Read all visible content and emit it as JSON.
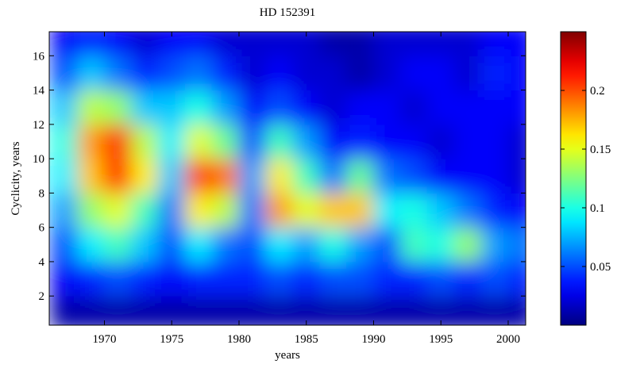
{
  "chart_data": {
    "type": "heatmap",
    "title": "HD 152391",
    "x_label": "years",
    "y_label": "Cyclicity, years",
    "x": [
      1967,
      1969,
      1971,
      1973,
      1975,
      1977,
      1979,
      1981,
      1983,
      1985,
      1987,
      1989,
      1991,
      1993,
      1995,
      1997,
      1999,
      2001
    ],
    "y": [
      1,
      3,
      5,
      7,
      9,
      11,
      13,
      15,
      17
    ],
    "z": [
      [
        0.01,
        0.01,
        0.01,
        0.01,
        0.01,
        0.01,
        0.01,
        0.01,
        0.01,
        0.01,
        0.01,
        0.01,
        0.01,
        0.01,
        0.01,
        0.01,
        0.01,
        0.01
      ],
      [
        0.03,
        0.04,
        0.05,
        0.04,
        0.03,
        0.04,
        0.04,
        0.04,
        0.05,
        0.04,
        0.05,
        0.05,
        0.04,
        0.04,
        0.05,
        0.04,
        0.05,
        0.04
      ],
      [
        0.05,
        0.09,
        0.11,
        0.08,
        0.05,
        0.09,
        0.06,
        0.05,
        0.09,
        0.07,
        0.1,
        0.07,
        0.05,
        0.11,
        0.1,
        0.13,
        0.07,
        0.06
      ],
      [
        0.07,
        0.13,
        0.15,
        0.11,
        0.06,
        0.16,
        0.14,
        0.06,
        0.18,
        0.15,
        0.17,
        0.17,
        0.09,
        0.1,
        0.08,
        0.06,
        0.04,
        0.03
      ],
      [
        0.09,
        0.17,
        0.21,
        0.16,
        0.08,
        0.2,
        0.19,
        0.07,
        0.16,
        0.11,
        0.06,
        0.12,
        0.06,
        0.05,
        0.03,
        0.03,
        0.03,
        0.02
      ],
      [
        0.1,
        0.18,
        0.21,
        0.14,
        0.09,
        0.15,
        0.12,
        0.05,
        0.11,
        0.07,
        0.03,
        0.04,
        0.03,
        0.03,
        0.02,
        0.03,
        0.03,
        0.02
      ],
      [
        0.08,
        0.14,
        0.13,
        0.08,
        0.08,
        0.1,
        0.07,
        0.03,
        0.05,
        0.03,
        0.02,
        0.03,
        0.03,
        0.02,
        0.03,
        0.03,
        0.03,
        0.03
      ],
      [
        0.05,
        0.08,
        0.06,
        0.04,
        0.05,
        0.06,
        0.04,
        0.02,
        0.03,
        0.02,
        0.02,
        0.01,
        0.02,
        0.03,
        0.03,
        0.02,
        0.04,
        0.03
      ],
      [
        0.03,
        0.04,
        0.03,
        0.02,
        0.03,
        0.03,
        0.02,
        0.02,
        0.02,
        0.02,
        0.01,
        0.01,
        0.02,
        0.02,
        0.02,
        0.02,
        0.03,
        0.03
      ]
    ],
    "xlim": [
      1965.9,
      2001.3
    ],
    "ylim": [
      0.3,
      17.4
    ],
    "xticks": [
      1970,
      1975,
      1980,
      1985,
      1990,
      1995,
      2000
    ],
    "yticks": [
      2,
      4,
      6,
      8,
      10,
      12,
      14,
      16
    ],
    "colormap": "jet",
    "clim": [
      0,
      0.25
    ],
    "cticks": [
      0.05,
      0.1,
      0.15,
      0.2
    ]
  }
}
